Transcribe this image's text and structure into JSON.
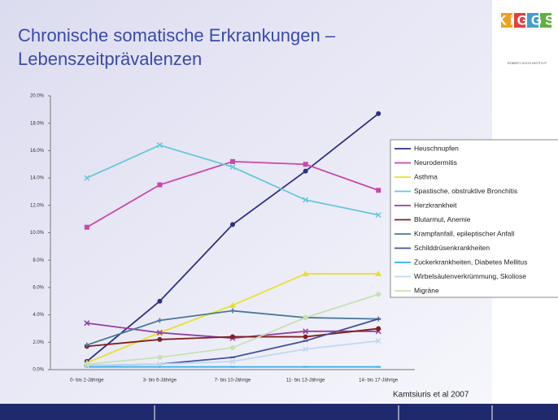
{
  "chart_data": {
    "type": "line",
    "title_lines": [
      "Chronische somatische Erkrankungen –",
      "Lebenszeitprävalenzen"
    ],
    "logo": "KiGGS",
    "institute": "ROBERT KOCH INSTITUT",
    "source": "Kamtsiuris et al 2007",
    "categories": [
      "0- bis 2-Jährige",
      "3- bis 6-Jährige",
      "7- bis 10-Jährige",
      "11- bis 13-Jährige",
      "14- bis 17-Jährige"
    ],
    "ylim": [
      0,
      20
    ],
    "yticks": [
      {
        "value": 0,
        "label": "0.0%"
      },
      {
        "value": 2,
        "label": "2.0%"
      },
      {
        "value": 4,
        "label": "4.0%"
      },
      {
        "value": 6,
        "label": "6.0%"
      },
      {
        "value": 8,
        "label": "8.0%"
      },
      {
        "value": 10,
        "label": "10.0%"
      },
      {
        "value": 12,
        "label": "12.0%"
      },
      {
        "value": 14,
        "label": "14.0%"
      },
      {
        "value": 16,
        "label": "16.0%"
      },
      {
        "value": 18,
        "label": "18.0%"
      },
      {
        "value": 20,
        "label": "20.0%"
      }
    ],
    "grid": false,
    "series": [
      {
        "name": "Heuschnupfen",
        "color": "#2e3080",
        "marker": "circle",
        "values": [
          0.6,
          5.0,
          10.6,
          14.5,
          18.7
        ]
      },
      {
        "name": "Neurodermitis",
        "color": "#c848a8",
        "marker": "square",
        "values": [
          10.4,
          13.5,
          15.2,
          15.0,
          13.1
        ]
      },
      {
        "name": "Asthma",
        "color": "#e8e030",
        "marker": "triangle",
        "values": [
          0.5,
          2.7,
          4.7,
          7.0,
          7.0
        ]
      },
      {
        "name": "Spastische, obstruktive Bronchitis",
        "color": "#68c8d8",
        "marker": "cross",
        "values": [
          14.0,
          16.4,
          14.8,
          12.4,
          11.3
        ]
      },
      {
        "name": "Herzkrankheit",
        "color": "#9040a0",
        "marker": "cross",
        "values": [
          3.4,
          2.7,
          2.3,
          2.8,
          2.8
        ]
      },
      {
        "name": "Blutarmut, Anemie",
        "color": "#802020",
        "marker": "circle",
        "values": [
          1.7,
          2.2,
          2.4,
          2.4,
          3.0
        ]
      },
      {
        "name": "Krampfanfall, epileptischer Anfall",
        "color": "#4a7898",
        "marker": "plus",
        "values": [
          1.8,
          3.6,
          4.3,
          3.8,
          3.7
        ]
      },
      {
        "name": "Schilddrüsenkrankheiten",
        "color": "#4450a0",
        "marker": "dash",
        "values": [
          0.3,
          0.4,
          0.9,
          2.1,
          3.7
        ]
      },
      {
        "name": "Zuckerkrankheiten, Diabetes Mellitus",
        "color": "#30b0e8",
        "marker": "dash",
        "values": [
          0.2,
          0.2,
          0.2,
          0.2,
          0.2
        ]
      },
      {
        "name": "Wirbelsäulenverkrümmung, Skoliose",
        "color": "#c0d8f0",
        "marker": "cross",
        "values": [
          0.3,
          0.4,
          0.6,
          1.5,
          2.1
        ]
      },
      {
        "name": "Migräne",
        "color": "#c8e0b0",
        "marker": "circle",
        "values": [
          0.4,
          0.9,
          1.6,
          3.8,
          5.5
        ]
      }
    ]
  }
}
